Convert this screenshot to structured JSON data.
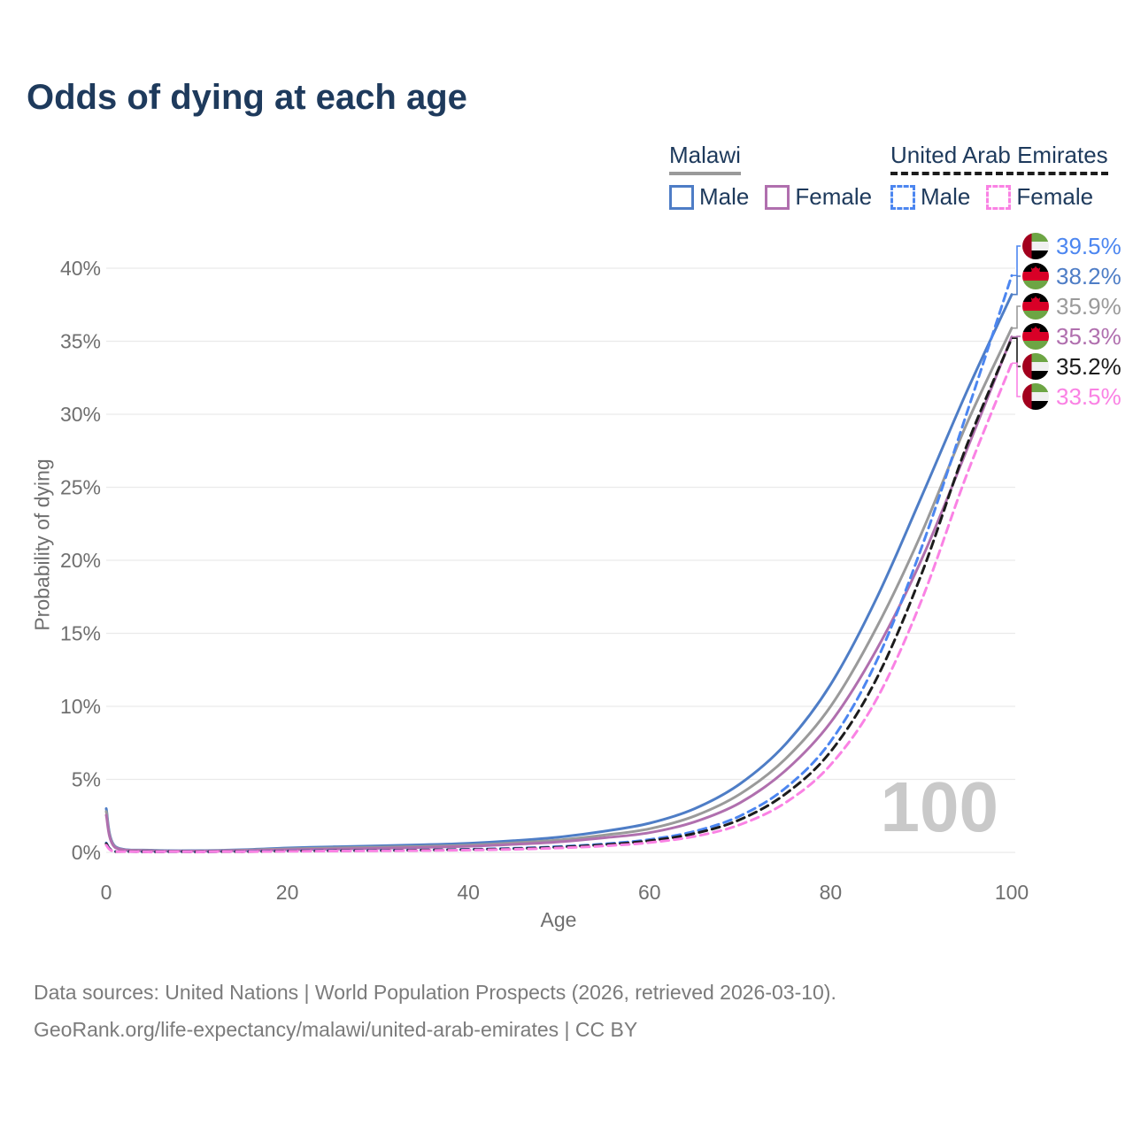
{
  "title": "Odds of dying at each age",
  "watermark_age": "100",
  "axis": {
    "x_label": "Age",
    "y_label": "Probability of dying",
    "x_ticks": [
      "0",
      "20",
      "40",
      "60",
      "80",
      "100"
    ],
    "y_ticks": [
      "0%",
      "5%",
      "10%",
      "15%",
      "20%",
      "25%",
      "30%",
      "35%",
      "40%"
    ]
  },
  "legend": {
    "groups": [
      {
        "label": "Malawi",
        "line_style": "solid",
        "underline_color": "#9a9a9a",
        "items": [
          {
            "label": "Male",
            "color": "#4e7dc6"
          },
          {
            "label": "Female",
            "color": "#b06fae"
          }
        ]
      },
      {
        "label": "United Arab Emirates",
        "line_style": "dashed",
        "underline_color": "#1c1c1c",
        "items": [
          {
            "label": "Male",
            "color": "#4c86f0"
          },
          {
            "label": "Female",
            "color": "#fa82e4"
          }
        ]
      }
    ]
  },
  "footer": {
    "line1": "Data sources: United Nations | World Population Prospects (2026, retrieved 2026-03-10).",
    "line2": "GeoRank.org/life-expectancy/malawi/united-arab-emirates | CC BY"
  },
  "colors": {
    "title_text": "#1e3a5c",
    "tick_text": "#6f6f6f",
    "grid": "#eaeaea",
    "footer_text": "#7b7b7b",
    "watermark": "#c9c9c9"
  },
  "chart_data": {
    "type": "line",
    "title": "Odds of dying at each age",
    "xlabel": "Age",
    "ylabel": "Probability of dying",
    "xlim": [
      0,
      100
    ],
    "ylim_percent": [
      0,
      40
    ],
    "grid": "horizontal-only",
    "legend_position": "top-right",
    "x_ages": [
      0,
      1,
      5,
      10,
      15,
      20,
      25,
      30,
      35,
      40,
      45,
      50,
      55,
      60,
      65,
      70,
      75,
      80,
      85,
      90,
      95,
      100
    ],
    "series": [
      {
        "id": "malawi_male",
        "name": "Malawi Male",
        "country": "Malawi",
        "sex": "male",
        "style": "solid",
        "color": "#4e7dc6",
        "flag": "mw",
        "end_label": "39.5%-stack-order-2",
        "final_value_percent": 38.2,
        "label": "38.2%",
        "values_percent": [
          3.0,
          0.4,
          0.15,
          0.12,
          0.18,
          0.3,
          0.38,
          0.45,
          0.52,
          0.62,
          0.8,
          1.05,
          1.45,
          2.0,
          3.0,
          4.7,
          7.4,
          11.5,
          17.3,
          24.3,
          31.5,
          38.2
        ]
      },
      {
        "id": "malawi_both",
        "name": "Malawi Both sexes",
        "country": "Malawi",
        "sex": "both",
        "style": "solid",
        "color": "#9a9a9a",
        "flag": "mw",
        "final_value_percent": 35.9,
        "label": "35.9%",
        "values_percent": [
          2.8,
          0.36,
          0.13,
          0.1,
          0.15,
          0.24,
          0.3,
          0.36,
          0.42,
          0.5,
          0.65,
          0.85,
          1.18,
          1.62,
          2.5,
          4.0,
          6.4,
          10.0,
          15.3,
          21.8,
          29.3,
          35.9
        ]
      },
      {
        "id": "malawi_female",
        "name": "Malawi Female",
        "country": "Malawi",
        "sex": "female",
        "style": "solid",
        "color": "#b06fae",
        "flag": "mw",
        "final_value_percent": 35.3,
        "label": "35.3%",
        "values_percent": [
          2.55,
          0.33,
          0.11,
          0.09,
          0.12,
          0.18,
          0.23,
          0.28,
          0.34,
          0.42,
          0.55,
          0.72,
          1.0,
          1.35,
          2.1,
          3.4,
          5.6,
          8.9,
          13.8,
          20.0,
          27.5,
          35.3
        ]
      },
      {
        "id": "uae_male",
        "name": "United Arab Emirates Male",
        "country": "United Arab Emirates",
        "sex": "male",
        "style": "dashed",
        "color": "#4c86f0",
        "flag": "ae",
        "final_value_percent": 39.5,
        "label": "39.5%",
        "values_percent": [
          0.65,
          0.06,
          0.03,
          0.03,
          0.06,
          0.1,
          0.12,
          0.14,
          0.17,
          0.21,
          0.28,
          0.4,
          0.58,
          0.88,
          1.45,
          2.5,
          4.4,
          7.6,
          13.0,
          20.8,
          30.0,
          39.5
        ]
      },
      {
        "id": "uae_both",
        "name": "United Arab Emirates Both sexes",
        "country": "United Arab Emirates",
        "sex": "both",
        "style": "dashed",
        "color": "#1c1c1c",
        "flag": "ae",
        "final_value_percent": 35.2,
        "label": "35.2%",
        "values_percent": [
          0.6,
          0.055,
          0.028,
          0.028,
          0.05,
          0.09,
          0.11,
          0.13,
          0.155,
          0.19,
          0.25,
          0.36,
          0.52,
          0.8,
          1.3,
          2.25,
          4.0,
          6.9,
          11.8,
          19.0,
          27.8,
          35.2
        ]
      },
      {
        "id": "uae_female",
        "name": "United Arab Emirates Female",
        "country": "United Arab Emirates",
        "sex": "female",
        "style": "dashed",
        "color": "#fa82e4",
        "flag": "ae",
        "final_value_percent": 33.5,
        "label": "33.5%",
        "values_percent": [
          0.5,
          0.05,
          0.025,
          0.025,
          0.04,
          0.07,
          0.09,
          0.11,
          0.13,
          0.16,
          0.21,
          0.3,
          0.44,
          0.67,
          1.1,
          1.9,
          3.4,
          6.0,
          10.4,
          17.2,
          25.8,
          33.5
        ]
      }
    ]
  }
}
